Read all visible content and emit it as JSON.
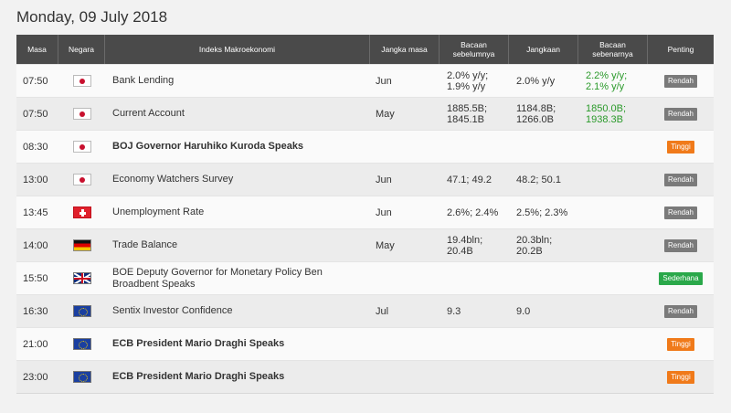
{
  "date_title": "Monday, 09 July 2018",
  "headers": {
    "time": "Masa",
    "country": "Negara",
    "event": "Indeks Makroekonomi",
    "period": "Jangka masa",
    "previous": "Bacaan\nsebelumnya",
    "forecast": "Jangkaan",
    "actual": "Bacaan\nsebenarnya",
    "importance": "Penting"
  },
  "colors": {
    "header_bg": "#4a4a4a",
    "actual_text": "#2a9a2a",
    "importance_low": "#7a7a7a",
    "importance_high": "#f07a1a",
    "importance_medium": "#2aa84a"
  },
  "rows": [
    {
      "time": "07:50",
      "flag": "japan-flag-icon",
      "event": "Bank Lending",
      "bold": false,
      "period": "Jun",
      "previous": "2.0% y/y;\n1.9% y/y",
      "forecast": "2.0% y/y",
      "actual": "2.2% y/y;\n2.1% y/y",
      "importance": "Rendah",
      "level": "low"
    },
    {
      "time": "07:50",
      "flag": "japan-flag-icon",
      "event": "Current Account",
      "bold": false,
      "period": "May",
      "previous": "1885.5B;\n1845.1B",
      "forecast": "1184.8B;\n1266.0B",
      "actual": "1850.0B;\n1938.3B",
      "importance": "Rendah",
      "level": "low"
    },
    {
      "time": "08:30",
      "flag": "japan-flag-icon",
      "event": "BOJ Governor Haruhiko Kuroda Speaks",
      "bold": true,
      "period": "",
      "previous": "",
      "forecast": "",
      "actual": "",
      "importance": "Tinggi",
      "level": "high"
    },
    {
      "time": "13:00",
      "flag": "japan-flag-icon",
      "event": "Economy Watchers Survey",
      "bold": false,
      "period": "Jun",
      "previous": "47.1; 49.2",
      "forecast": "48.2; 50.1",
      "actual": "",
      "importance": "Rendah",
      "level": "low"
    },
    {
      "time": "13:45",
      "flag": "switzerland-flag-icon",
      "event": "Unemployment Rate",
      "bold": false,
      "period": "Jun",
      "previous": "2.6%; 2.4%",
      "forecast": "2.5%; 2.3%",
      "actual": "",
      "importance": "Rendah",
      "level": "low"
    },
    {
      "time": "14:00",
      "flag": "germany-flag-icon",
      "event": "Trade Balance",
      "bold": false,
      "period": "May",
      "previous": "19.4bln;\n20.4B",
      "forecast": "20.3bln;\n20.2B",
      "actual": "",
      "importance": "Rendah",
      "level": "low"
    },
    {
      "time": "15:50",
      "flag": "uk-flag-icon",
      "event": "BOE Deputy Governor for Monetary Policy Ben Broadbent Speaks",
      "bold": false,
      "period": "",
      "previous": "",
      "forecast": "",
      "actual": "",
      "importance": "Sederhana",
      "level": "mid"
    },
    {
      "time": "16:30",
      "flag": "eu-flag-icon",
      "event": "Sentix Investor Confidence",
      "bold": false,
      "period": "Jul",
      "previous": "9.3",
      "forecast": "9.0",
      "actual": "",
      "importance": "Rendah",
      "level": "low"
    },
    {
      "time": "21:00",
      "flag": "eu-flag-icon",
      "event": "ECB President Mario Draghi Speaks",
      "bold": true,
      "period": "",
      "previous": "",
      "forecast": "",
      "actual": "",
      "importance": "Tinggi",
      "level": "high"
    },
    {
      "time": "23:00",
      "flag": "eu-flag-icon",
      "event": "ECB President Mario Draghi Speaks",
      "bold": true,
      "period": "",
      "previous": "",
      "forecast": "",
      "actual": "",
      "importance": "Tinggi",
      "level": "high"
    }
  ]
}
